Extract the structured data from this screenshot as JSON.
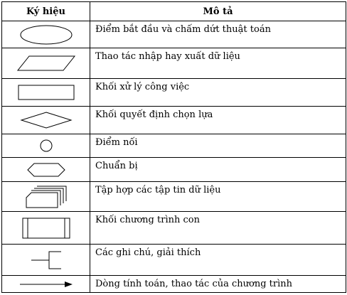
{
  "header": {
    "symbol": "Ký hiệu",
    "description": "Mô tả"
  },
  "rows": [
    {
      "icon": "ellipse-icon",
      "description": "Điểm bắt đầu và chấm dứt thuật toán"
    },
    {
      "icon": "parallelogram-icon",
      "description": "Thao tác nhập hay xuất dữ liệu"
    },
    {
      "icon": "rectangle-icon",
      "description": "Khối xử lý công việc"
    },
    {
      "icon": "diamond-icon",
      "description": "Khối quyết định chọn lựa"
    },
    {
      "icon": "circle-icon",
      "description": "Điểm nối"
    },
    {
      "icon": "hexagon-icon",
      "description": "Chuẩn bị"
    },
    {
      "icon": "stacked-files-icon",
      "description": "Tập hợp các tập tin dữ liệu"
    },
    {
      "icon": "subroutine-icon",
      "description": "Khối chương trình con"
    },
    {
      "icon": "annotation-bracket-icon",
      "description": "Các ghi chú, giải thích"
    },
    {
      "icon": "arrow-right-icon",
      "description": "Dòng tính toán, thao tác của chương trình"
    }
  ]
}
